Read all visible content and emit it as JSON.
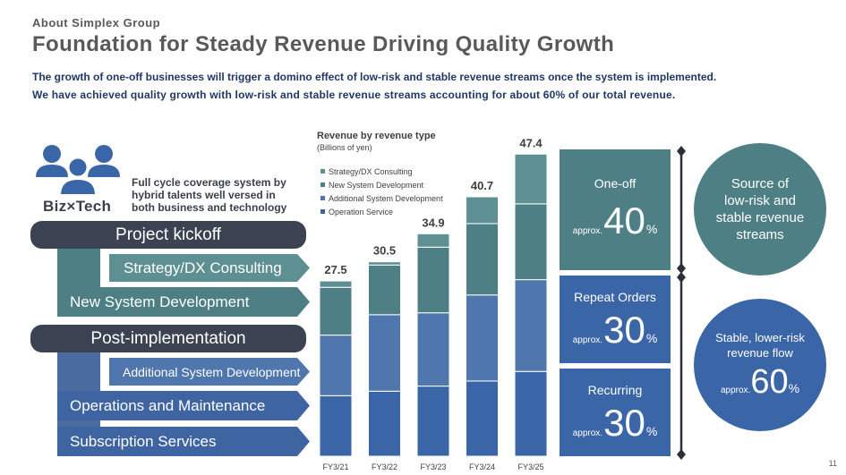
{
  "header": {
    "section": "About Simplex Group",
    "title": "Foundation for Steady Revenue Driving Quality Growth",
    "subtitle_1": "The growth of one-off businesses will trigger a domino effect of low-risk and stable revenue streams once the system is implemented.",
    "subtitle_2": "We have achieved quality growth with low-risk and stable revenue streams accounting for about 60% of our total revenue."
  },
  "left": {
    "biz_tech": "Biz×Tech",
    "coverage_line1": "Full cycle coverage system by",
    "coverage_line2": "hybrid talents well versed in",
    "coverage_line3": "both business and technology",
    "kickoff": "Project kickoff",
    "strategy": "Strategy/DX Consulting",
    "new_system": "New System Development",
    "post": "Post-implementation",
    "additional": "Additional System Development",
    "operations": "Operations and Maintenance",
    "subscription": "Subscription Services"
  },
  "colors": {
    "strategy": "#5e8f92",
    "new_system": "#4e7f85",
    "additional": "#4f76ad",
    "operation": "#3a65a6"
  },
  "chart_data": {
    "type": "bar",
    "stacked": true,
    "title": "Revenue by revenue type",
    "unit": "(Billions of yen)",
    "categories": [
      "FY3/21",
      "FY3/22",
      "FY3/23",
      "FY3/24",
      "FY3/25"
    ],
    "totals": [
      27.5,
      30.5,
      34.9,
      40.7,
      47.4
    ],
    "total_labels": [
      "27.5",
      "30.5",
      "34.9",
      "40.7",
      "47.4"
    ],
    "series": [
      {
        "name": "Operation Service",
        "values": [
          9.5,
          10.2,
          11.0,
          11.8,
          13.3
        ]
      },
      {
        "name": "Additional System Development",
        "values": [
          9.5,
          12.0,
          11.5,
          13.5,
          14.4
        ]
      },
      {
        "name": "New System Development",
        "values": [
          7.5,
          7.8,
          10.3,
          11.2,
          11.9
        ]
      },
      {
        "name": "Strategy/DX Consulting",
        "values": [
          1.0,
          0.5,
          2.1,
          4.2,
          7.8
        ]
      }
    ],
    "legend_order": [
      "Strategy/DX Consulting",
      "New System Development",
      "Additional System Development",
      "Operation Service"
    ],
    "ylim": [
      0,
      48
    ]
  },
  "panels": {
    "oneoff_label": "One-off",
    "oneoff_approx": "approx.",
    "oneoff_value": "40",
    "repeat_label": "Repeat Orders",
    "repeat_approx": "approx.",
    "repeat_value": "30",
    "recurring_label": "Recurring",
    "recurring_approx": "approx.",
    "recurring_value": "30",
    "pct": "%",
    "circle1_l1": "Source of",
    "circle1_l2": "low-risk and",
    "circle1_l3": "stable revenue",
    "circle1_l4": "streams",
    "circle2_l1": "Stable, lower-risk",
    "circle2_l2": "revenue flow",
    "circle2_approx": "approx.",
    "circle2_value": "60",
    "circle2_pct": "%"
  },
  "page_number": "11"
}
